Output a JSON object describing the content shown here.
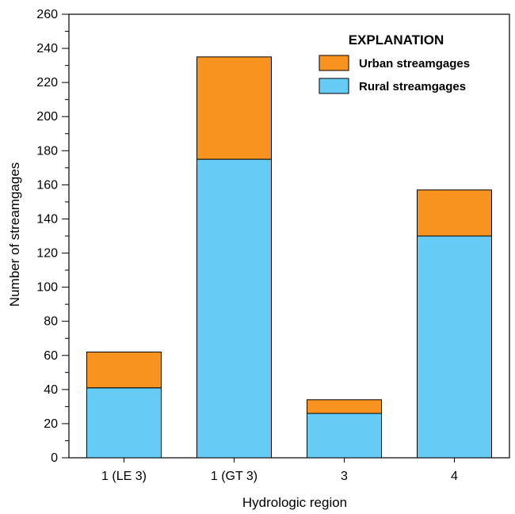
{
  "chart_data": {
    "type": "bar",
    "stacked": true,
    "categories": [
      "1 (LE 3)",
      "1 (GT 3)",
      "3",
      "4"
    ],
    "series": [
      {
        "name": "Rural streamgages",
        "values": [
          41,
          175,
          26,
          130
        ],
        "color": "#66ccf5"
      },
      {
        "name": "Urban streamgages",
        "values": [
          21,
          60,
          8,
          27
        ],
        "color": "#f7931e"
      }
    ],
    "title": "",
    "xlabel": "Hydrologic region",
    "ylabel": "Number of streamgages",
    "ylim": [
      0,
      260
    ],
    "yticks": [
      0,
      20,
      40,
      60,
      80,
      100,
      120,
      140,
      160,
      180,
      200,
      220,
      240,
      260
    ],
    "grid": false,
    "legend": {
      "title": "EXPLANATION",
      "placement": "top-right",
      "order": [
        "Urban streamgages",
        "Rural streamgages"
      ]
    }
  }
}
